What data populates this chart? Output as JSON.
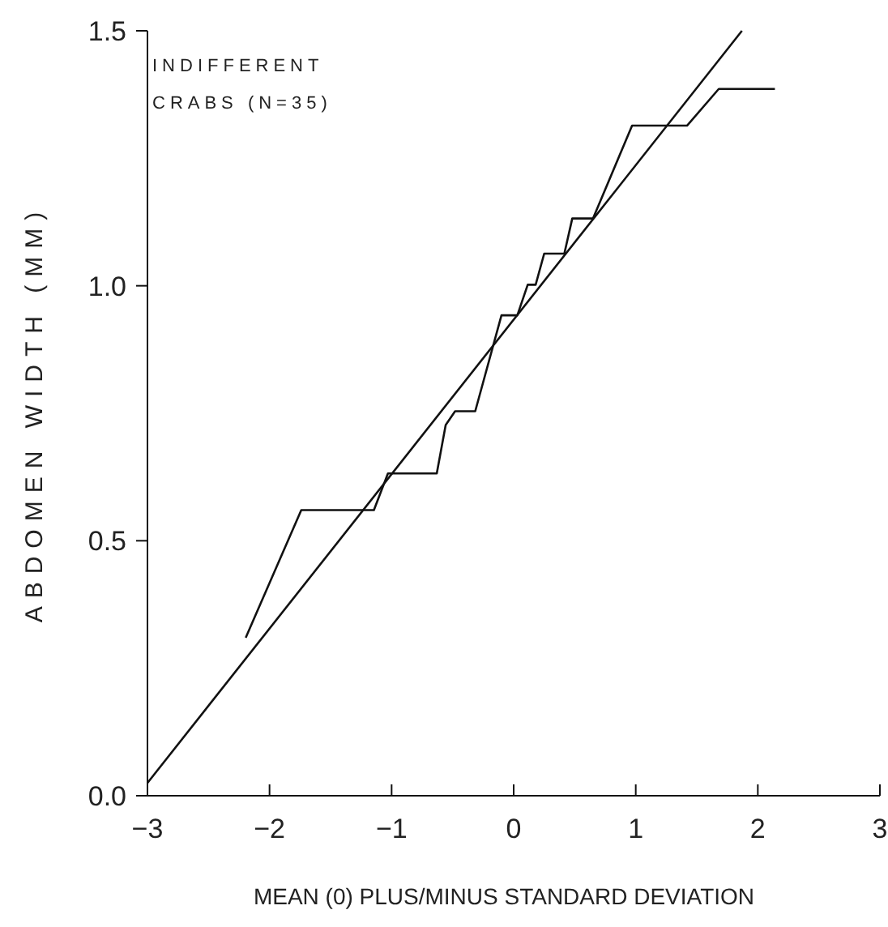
{
  "chart_data": {
    "type": "line",
    "xlabel": "MEAN (0) PLUS/MINUS STANDARD DEVIATION",
    "ylabel": "ABDOMEN WIDTH (MM)",
    "annotations": [
      "INDIFFERENT\nCRABS (N=35)"
    ],
    "xlim": [
      -3,
      3
    ],
    "xticks": [
      -3,
      -2,
      -1,
      0,
      1,
      2,
      3
    ],
    "ylim": [
      0,
      1.5
    ],
    "yticks": [
      {
        "value": 0,
        "label": "0.0"
      },
      {
        "value": 0.5,
        "label": "0.5"
      },
      {
        "value": 1,
        "label": "1.0"
      },
      {
        "value": 1.5,
        "label": "1.5"
      }
    ],
    "grid": false,
    "marker": "none",
    "line_style": "solid",
    "series": [
      {
        "color": "#111111",
        "x": [
          -2.195,
          -1.74,
          -1.145,
          -1.03,
          -0.63,
          -0.557,
          -0.48,
          -0.315,
          -0.1,
          0.03,
          0.115,
          0.18,
          0.25,
          0.415,
          0.48,
          0.65,
          0.97,
          1.42,
          1.68,
          2.14
        ],
        "values": [
          0.31,
          0.56,
          0.56,
          0.632,
          0.632,
          0.727,
          0.754,
          0.754,
          0.942,
          0.942,
          1.002,
          1.002,
          1.063,
          1.063,
          1.132,
          1.132,
          1.314,
          1.314,
          1.386,
          1.386
        ]
      },
      {
        "color": "#111111",
        "x": [
          -3,
          1.87
        ],
        "values": [
          0.025,
          1.5
        ]
      }
    ]
  }
}
